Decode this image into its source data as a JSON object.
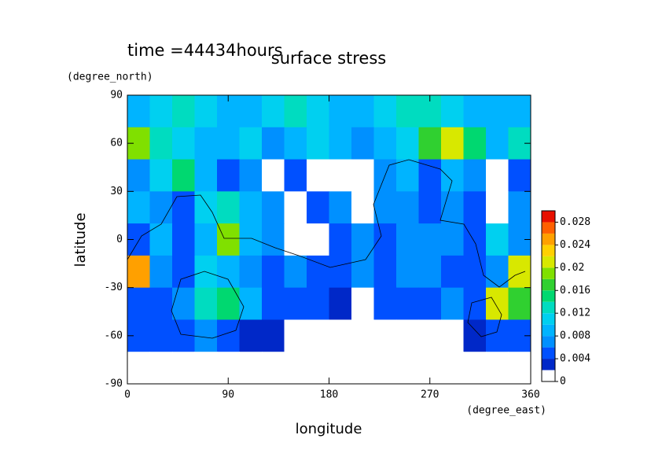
{
  "chart_data": {
    "type": "contour",
    "title": "surface stress",
    "subtitle": "time =44434hours",
    "xlabel": "longitude",
    "ylabel": "latitude",
    "xunit": "(degree_east)",
    "yunit": "(degree_north)",
    "xlim": [
      0,
      360
    ],
    "ylim": [
      -90,
      90
    ],
    "xticks": [
      0,
      90,
      180,
      270,
      360
    ],
    "yticks": [
      -90,
      -60,
      -30,
      0,
      30,
      60,
      90
    ],
    "x": [
      10,
      30,
      50,
      70,
      90,
      110,
      130,
      150,
      170,
      190,
      210,
      230,
      250,
      270,
      290,
      310,
      330,
      350
    ],
    "y": [
      80,
      60,
      40,
      20,
      0,
      -20,
      -40,
      -60,
      -80
    ],
    "z": [
      [
        0.008,
        0.01,
        0.012,
        0.01,
        0.008,
        0.008,
        0.01,
        0.012,
        0.01,
        0.008,
        0.008,
        0.01,
        0.012,
        0.012,
        0.01,
        0.008,
        0.008,
        0.008
      ],
      [
        0.018,
        0.012,
        0.01,
        0.008,
        0.008,
        0.01,
        0.006,
        0.008,
        0.01,
        0.008,
        0.006,
        0.008,
        0.01,
        0.016,
        0.02,
        0.014,
        0.008,
        0.012
      ],
      [
        0.006,
        0.01,
        0.014,
        0.008,
        0.004,
        0.006,
        0,
        0.004,
        0,
        0,
        0,
        0.006,
        0.008,
        0.004,
        0.008,
        0.006,
        0,
        0.004
      ],
      [
        0.008,
        0.006,
        0.004,
        0.01,
        0.012,
        0.008,
        0.006,
        0,
        0.004,
        0.006,
        0,
        0.006,
        0.006,
        0.004,
        0.006,
        0.004,
        0,
        0.006
      ],
      [
        0.004,
        0.008,
        0.004,
        0.008,
        0.018,
        0.008,
        0.006,
        0,
        0,
        0.004,
        0.006,
        0.004,
        0.006,
        0.006,
        0.006,
        0.004,
        0.01,
        0.006
      ],
      [
        0.024,
        0.006,
        0.004,
        0.01,
        0.008,
        0.006,
        0.004,
        0.006,
        0.004,
        0.004,
        0.006,
        0.004,
        0.006,
        0.006,
        0.004,
        0.004,
        0.006,
        0.02
      ],
      [
        0.004,
        0.004,
        0.006,
        0.012,
        0.014,
        0.008,
        0.004,
        0.004,
        0.004,
        0.002,
        0,
        0.004,
        0.004,
        0.004,
        0.006,
        0.004,
        0.02,
        0.016
      ],
      [
        0.004,
        0.004,
        0.004,
        0.006,
        0.004,
        0.002,
        0.002,
        0,
        0,
        0,
        0,
        0,
        0,
        0,
        0,
        0.002,
        0.004,
        0.004
      ],
      [
        0,
        0,
        0,
        0,
        0,
        0,
        0,
        0,
        0,
        0,
        0,
        0,
        0,
        0,
        0,
        0,
        0,
        0
      ]
    ],
    "levels": [
      0,
      0.002,
      0.004,
      0.006,
      0.008,
      0.01,
      0.012,
      0.014,
      0.016,
      0.018,
      0.02,
      0.022,
      0.024,
      0.026,
      0.028,
      0.03
    ],
    "colors": [
      "#ffffff",
      "#0028c8",
      "#0050ff",
      "#0090ff",
      "#00b4ff",
      "#00d0f0",
      "#00dcc0",
      "#00d870",
      "#30d030",
      "#80e000",
      "#d8e800",
      "#ffd000",
      "#ffa000",
      "#ff6000",
      "#e81000"
    ],
    "colorbar_ticks": [
      0,
      0.004,
      0.008,
      0.012,
      0.016,
      0.02,
      0.024,
      0.028
    ]
  }
}
